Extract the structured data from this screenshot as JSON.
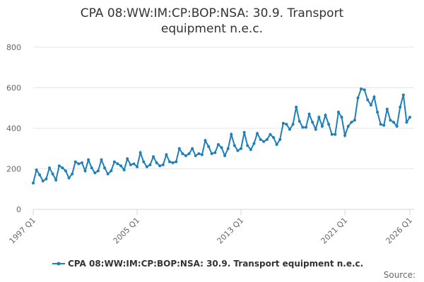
{
  "chart_data": {
    "type": "line",
    "title": "CPA 08:WW:IM:CP:BOP:NSA: 30.9. Transport equipment n.e.c.",
    "source_label": "Source:",
    "categories": [
      "1997 Q1",
      null,
      null,
      null,
      null,
      null,
      null,
      null,
      null,
      null,
      null,
      null,
      null,
      null,
      null,
      null,
      null,
      null,
      null,
      null,
      null,
      null,
      null,
      null,
      null,
      null,
      null,
      null,
      null,
      null,
      null,
      null,
      "2005 Q1",
      null,
      null,
      null,
      null,
      null,
      null,
      null,
      null,
      null,
      null,
      null,
      null,
      null,
      null,
      null,
      null,
      null,
      null,
      null,
      null,
      null,
      null,
      null,
      null,
      null,
      null,
      null,
      null,
      null,
      null,
      null,
      "2013 Q1",
      null,
      null,
      null,
      null,
      null,
      null,
      null,
      null,
      null,
      null,
      null,
      null,
      null,
      null,
      null,
      null,
      null,
      null,
      null,
      null,
      null,
      null,
      null,
      null,
      null,
      null,
      null,
      null,
      null,
      null,
      null,
      "2021 Q1",
      null,
      null,
      null,
      null,
      null,
      null,
      null,
      null,
      null,
      null,
      null,
      null,
      null,
      null,
      null,
      null,
      null,
      null,
      null,
      "2026 Q1"
    ],
    "series": [
      {
        "name": "CPA 08:WW:IM:CP:BOP:NSA: 30.9. Transport equipment n.e.c.",
        "color": "#1f7fb8",
        "values": [
          130,
          195,
          170,
          140,
          150,
          205,
          175,
          145,
          215,
          205,
          190,
          155,
          175,
          235,
          225,
          230,
          190,
          245,
          205,
          180,
          190,
          245,
          205,
          175,
          190,
          235,
          225,
          215,
          195,
          250,
          220,
          225,
          210,
          280,
          235,
          210,
          220,
          260,
          230,
          215,
          220,
          270,
          235,
          230,
          235,
          300,
          275,
          265,
          275,
          300,
          265,
          275,
          270,
          340,
          310,
          275,
          280,
          320,
          305,
          265,
          300,
          370,
          315,
          290,
          300,
          380,
          315,
          295,
          325,
          375,
          345,
          335,
          345,
          370,
          355,
          320,
          345,
          425,
          420,
          395,
          420,
          505,
          435,
          405,
          405,
          470,
          430,
          395,
          455,
          410,
          465,
          420,
          370,
          370,
          480,
          455,
          365,
          410,
          430,
          440,
          550,
          595,
          590,
          540,
          515,
          555,
          480,
          420,
          415,
          495,
          440,
          430,
          410,
          505,
          565,
          430,
          455
        ]
      }
    ],
    "ylim": [
      0,
      800
    ],
    "yticks": [
      0,
      200,
      400,
      600,
      800
    ],
    "grid": true
  }
}
